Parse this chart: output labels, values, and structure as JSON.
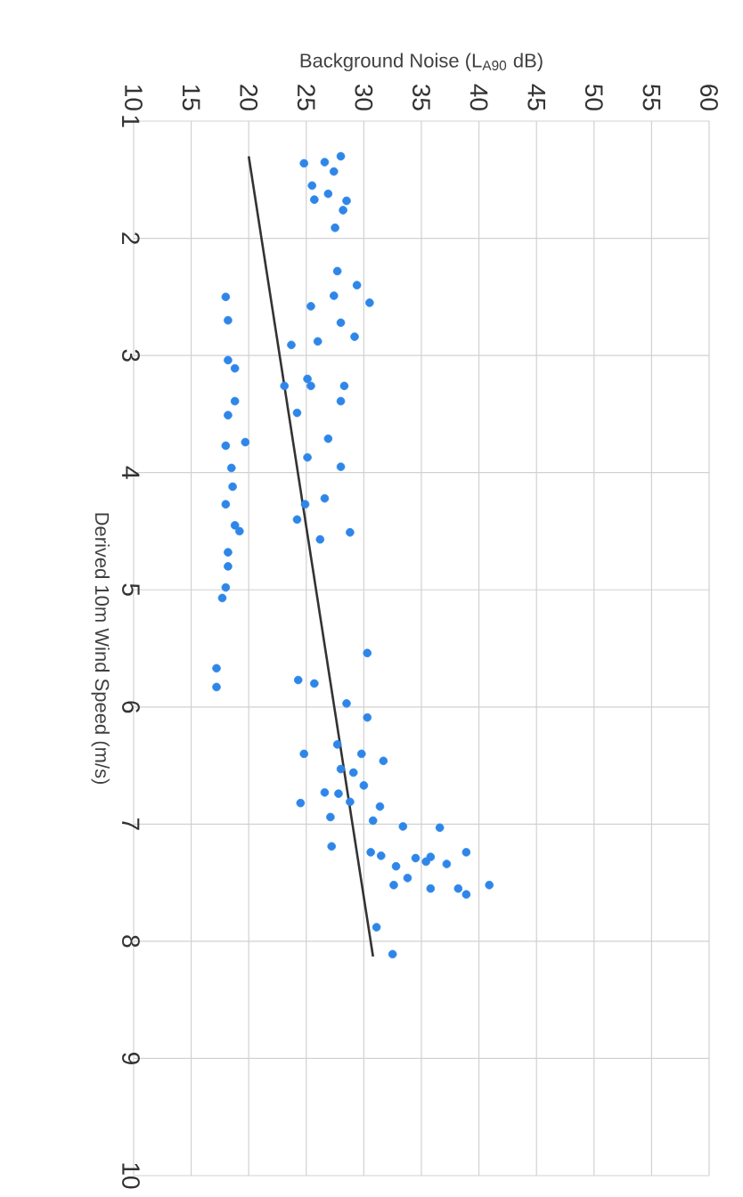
{
  "chart_data": {
    "type": "scatter",
    "xlabel": "Background Noise (L$_{A90}$ dB)",
    "ylabel": "Derived 10m Wind Speed (m/s)",
    "xlim": [
      10,
      60
    ],
    "ylim": [
      10,
      1
    ],
    "xticks": [
      10,
      15,
      20,
      25,
      30,
      35,
      40,
      45,
      50,
      55,
      60
    ],
    "yticks": [
      1,
      2,
      3,
      4,
      5,
      6,
      7,
      8,
      9,
      10
    ],
    "grid": true,
    "series": [
      {
        "type": "scatter",
        "marker": "circle",
        "color": "#2e86e8",
        "x": [
          24.8,
          26.6,
          28.0,
          27.4,
          25.5,
          25.7,
          26.9,
          28.5,
          28.2,
          27.5,
          27.7,
          29.4,
          27.4,
          30.5,
          25.4,
          28.0,
          26.0,
          29.2,
          23.7,
          18.0,
          18.2,
          18.2,
          18.8,
          18.8,
          18.2,
          25.1,
          25.4,
          23.1,
          28.3,
          28.0,
          24.2,
          18.0,
          19.7,
          18.5,
          18.6,
          18.0,
          18.8,
          19.2,
          18.2,
          18.2,
          18.0,
          17.7,
          26.9,
          25.1,
          28.0,
          24.9,
          26.6,
          24.2,
          26.2,
          28.8,
          30.3,
          17.2,
          17.2,
          24.3,
          25.7,
          28.5,
          30.3,
          24.8,
          27.7,
          29.8,
          31.7,
          28.0,
          29.1,
          30.0,
          26.6,
          27.8,
          28.8,
          24.5,
          31.4,
          30.8,
          27.1,
          33.4,
          36.6,
          27.2,
          30.6,
          31.5,
          32.8,
          34.5,
          35.8,
          35.4,
          37.2,
          38.9,
          33.8,
          32.6,
          35.8,
          38.2,
          38.9,
          40.9,
          31.1,
          32.5
        ],
        "values": [
          1.36,
          1.35,
          1.3,
          1.43,
          1.55,
          1.67,
          1.62,
          1.68,
          1.76,
          1.91,
          2.28,
          2.4,
          2.49,
          2.55,
          2.58,
          2.72,
          2.88,
          2.84,
          2.91,
          2.5,
          2.7,
          3.04,
          3.11,
          3.39,
          3.51,
          3.2,
          3.26,
          3.26,
          3.26,
          3.39,
          3.49,
          3.77,
          3.74,
          3.96,
          4.12,
          4.27,
          4.45,
          4.5,
          4.68,
          4.8,
          4.98,
          5.07,
          3.71,
          3.87,
          3.95,
          4.27,
          4.22,
          4.4,
          4.57,
          4.51,
          5.54,
          5.67,
          5.83,
          5.77,
          5.8,
          5.97,
          6.09,
          6.4,
          6.32,
          6.4,
          6.46,
          6.53,
          6.56,
          6.67,
          6.73,
          6.74,
          6.81,
          6.82,
          6.85,
          6.97,
          6.94,
          7.02,
          7.03,
          7.19,
          7.24,
          7.27,
          7.36,
          7.29,
          7.28,
          7.32,
          7.34,
          7.24,
          7.46,
          7.52,
          7.55,
          7.55,
          7.6,
          7.52,
          7.88,
          8.11
        ]
      },
      {
        "type": "line",
        "marker": "none",
        "color": "#333333",
        "x": [
          20.0,
          30.8
        ],
        "values": [
          1.3,
          8.13
        ]
      }
    ]
  }
}
